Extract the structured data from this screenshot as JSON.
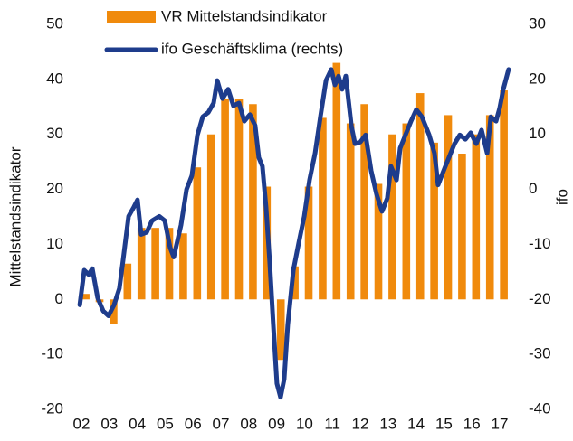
{
  "chart_data": {
    "type": "bar_line",
    "y_label": "Mittelstandsindikator",
    "y2_label": "ifo",
    "xlim": [
      2001.8,
      2017.4
    ],
    "xticks": [
      {
        "value": 2002,
        "label": "02"
      },
      {
        "value": 2003,
        "label": "03"
      },
      {
        "value": 2004,
        "label": "04"
      },
      {
        "value": 2005,
        "label": "05"
      },
      {
        "value": 2006,
        "label": "06"
      },
      {
        "value": 2007,
        "label": "07"
      },
      {
        "value": 2008,
        "label": "08"
      },
      {
        "value": 2009,
        "label": "09"
      },
      {
        "value": 2010,
        "label": "10"
      },
      {
        "value": 2011,
        "label": "11"
      },
      {
        "value": 2012,
        "label": "12"
      },
      {
        "value": 2013,
        "label": "13"
      },
      {
        "value": 2014,
        "label": "14"
      },
      {
        "value": 2015,
        "label": "15"
      },
      {
        "value": 2016,
        "label": "16"
      },
      {
        "value": 2017,
        "label": "17"
      }
    ],
    "ylim": [
      -20,
      50
    ],
    "yticks": [
      -20,
      -10,
      0,
      10,
      20,
      30,
      40,
      50
    ],
    "y2lim": [
      -40,
      30
    ],
    "y2ticks": [
      -40,
      -30,
      -20,
      -10,
      0,
      10,
      20,
      30
    ],
    "series": [
      {
        "name": "VR Mittelstandsindikator",
        "type": "bar",
        "color": "#f08a0c",
        "x": [
          2002.15,
          2002.65,
          2003.15,
          2003.65,
          2004.15,
          2004.65,
          2005.15,
          2005.65,
          2006.15,
          2006.65,
          2007.15,
          2007.65,
          2008.15,
          2008.65,
          2009.15,
          2009.65,
          2010.15,
          2010.65,
          2011.15,
          2011.65,
          2012.15,
          2012.65,
          2013.15,
          2013.65,
          2014.15,
          2014.65,
          2015.15,
          2015.65,
          2016.15,
          2016.65,
          2017.15
        ],
        "values": [
          1,
          -0.5,
          -4.5,
          6.5,
          13,
          13,
          13,
          12,
          24,
          30,
          36.5,
          36.5,
          35.5,
          20.5,
          -11,
          6,
          20.5,
          33,
          43,
          32,
          35.5,
          21,
          30,
          32,
          37.5,
          28.5,
          33.5,
          26.5,
          30,
          33.5,
          38
        ]
      },
      {
        "name": "ifo Geschäftsklima (rechts)",
        "type": "line",
        "axis": "y2",
        "color": "#1e3c8c",
        "x": [
          2001.94,
          2002.1,
          2002.26,
          2002.39,
          2002.58,
          2002.78,
          2002.97,
          2003.17,
          2003.36,
          2003.49,
          2003.69,
          2003.88,
          2004.01,
          2004.14,
          2004.34,
          2004.53,
          2004.79,
          2004.99,
          2005.18,
          2005.31,
          2005.57,
          2005.77,
          2005.96,
          2006.16,
          2006.35,
          2006.55,
          2006.74,
          2006.87,
          2007.06,
          2007.26,
          2007.45,
          2007.65,
          2007.84,
          2008.04,
          2008.23,
          2008.36,
          2008.49,
          2008.62,
          2008.75,
          2008.88,
          2009.01,
          2009.14,
          2009.27,
          2009.4,
          2009.6,
          2009.79,
          2009.99,
          2010.18,
          2010.38,
          2010.57,
          2010.77,
          2010.96,
          2011.09,
          2011.22,
          2011.35,
          2011.48,
          2011.68,
          2011.81,
          2012.0,
          2012.19,
          2012.39,
          2012.58,
          2012.78,
          2012.97,
          2013.1,
          2013.3,
          2013.43,
          2013.62,
          2013.82,
          2014.01,
          2014.21,
          2014.47,
          2014.66,
          2014.79,
          2014.99,
          2015.18,
          2015.38,
          2015.57,
          2015.77,
          2015.96,
          2016.16,
          2016.35,
          2016.55,
          2016.68,
          2016.87,
          2017.0,
          2017.13,
          2017.32
        ],
        "values": [
          -21,
          -14.7,
          -15.5,
          -14.4,
          -19.7,
          -22.1,
          -23,
          -21,
          -18,
          -13,
          -4.9,
          -3.2,
          -1.9,
          -8.2,
          -7.8,
          -5.7,
          -4.9,
          -5.7,
          -10.6,
          -12.3,
          -6.5,
          0,
          2.5,
          9.9,
          13.2,
          14,
          15.7,
          19.8,
          16.5,
          18.2,
          15.2,
          15.7,
          12.4,
          13.6,
          11.6,
          5.8,
          4.2,
          -3.2,
          -13.1,
          -24.6,
          -35.3,
          -37.8,
          -34.5,
          -24.6,
          -14.7,
          -9.8,
          -4.9,
          1.7,
          6.6,
          13.2,
          19.8,
          21.8,
          19,
          20.6,
          18.2,
          20.6,
          11.6,
          8.3,
          8.6,
          9.9,
          3.4,
          -0.8,
          -4,
          -1.6,
          4.2,
          1.7,
          7.5,
          9.9,
          12.4,
          14.5,
          13.2,
          9.9,
          6.6,
          0.8,
          3.4,
          5.8,
          8.3,
          9.9,
          9.1,
          10.3,
          8.3,
          10.8,
          6.6,
          13.2,
          12.4,
          14.8,
          18.2,
          21.8
        ]
      }
    ]
  }
}
